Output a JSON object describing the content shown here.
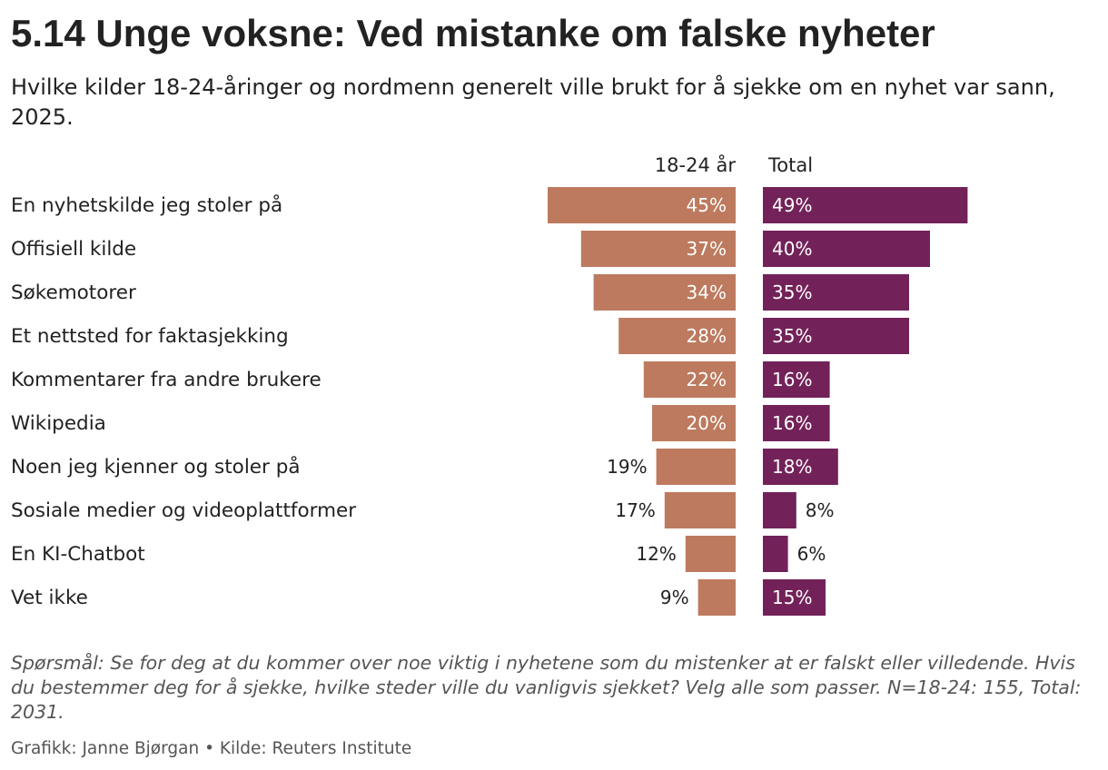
{
  "title": "5.14 Unge voksne: Ved mistanke om falske nyheter",
  "subtitle": "Hvilke kilder 18-24-åringer og nordmenn generelt ville brukt for å sjekke om en nyhet var sann, 2025.",
  "note": "Spørsmål: Se for deg at du kommer over noe viktig i nyhetene som du mistenker at er falskt eller villedende. Hvis du bestemmer deg for å sjekke, hvilke steder ville du vanligvis sjekket? Velg alle som passer. N=18-24: 155, Total: 2031.",
  "footer": "Grafikk: Janne Bjørgan • Kilde: Reuters Institute",
  "colors": {
    "young": "#bd7a5e",
    "total": "#722259"
  },
  "chart_data": {
    "type": "bar",
    "orientation": "horizontal-butterfly",
    "unit": "%",
    "xlim": [
      0,
      55
    ],
    "categories": [
      "En nyhetskilde jeg stoler på",
      "Offisiell kilde",
      "Søkemotorer",
      "Et nettsted for faktasjekking",
      "Kommentarer fra andre brukere",
      "Wikipedia",
      "Noen jeg kjenner og stoler på",
      "Sosiale medier og videoplattformer",
      "En KI-Chatbot",
      "Vet ikke"
    ],
    "series": [
      {
        "name": "18-24 år",
        "values": [
          45,
          37,
          34,
          28,
          22,
          20,
          19,
          17,
          12,
          9
        ]
      },
      {
        "name": "Total",
        "values": [
          49,
          40,
          35,
          35,
          16,
          16,
          18,
          8,
          6,
          15
        ]
      }
    ]
  }
}
